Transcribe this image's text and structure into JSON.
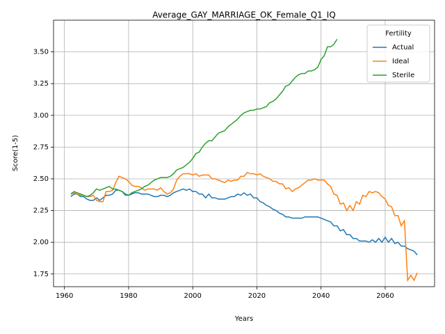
{
  "chart_data": {
    "type": "line",
    "title": "Average_GAY_MARRIAGE_OK_Female_Q1_IQ",
    "x_label": "Years",
    "y_label": "Score(1-5)",
    "legend_title": "Fertility",
    "legend_position": "upper right",
    "grid": true,
    "xlim": [
      1956.6,
      2075.4
    ],
    "xticks": [
      1960,
      1980,
      2000,
      2020,
      2040,
      2060
    ],
    "ylim": [
      1.65,
      3.75
    ],
    "yticks": [
      {
        "value": 1.75,
        "label": "1.75"
      },
      {
        "value": 2,
        "label": "2.00"
      },
      {
        "value": 2.25,
        "label": "2.25"
      },
      {
        "value": 2.5,
        "label": "2.50"
      },
      {
        "value": 2.75,
        "label": "2.75"
      },
      {
        "value": 3,
        "label": "3.00"
      },
      {
        "value": 3.25,
        "label": "3.25"
      },
      {
        "value": 3.5,
        "label": "3.50"
      }
    ],
    "x": [
      1962,
      1963,
      1964,
      1965,
      1966,
      1967,
      1968,
      1969,
      1970,
      1971,
      1972,
      1973,
      1974,
      1975,
      1976,
      1977,
      1978,
      1979,
      1980,
      1981,
      1982,
      1983,
      1984,
      1985,
      1986,
      1987,
      1988,
      1989,
      1990,
      1991,
      1992,
      1993,
      1994,
      1995,
      1996,
      1997,
      1998,
      1999,
      2000,
      2001,
      2002,
      2003,
      2004,
      2005,
      2006,
      2007,
      2008,
      2009,
      2010,
      2011,
      2012,
      2013,
      2014,
      2015,
      2016,
      2017,
      2018,
      2019,
      2020,
      2021,
      2022,
      2023,
      2024,
      2025,
      2026,
      2027,
      2028,
      2029,
      2030,
      2031,
      2032,
      2033,
      2034,
      2035,
      2036,
      2037,
      2038,
      2039,
      2040,
      2041,
      2042,
      2043,
      2044,
      2045,
      2046,
      2047,
      2048,
      2049,
      2050,
      2051,
      2052,
      2053,
      2054,
      2055,
      2056,
      2057,
      2058,
      2059,
      2060,
      2061,
      2062,
      2063,
      2064,
      2065,
      2066,
      2067,
      2068,
      2069,
      2070
    ],
    "series": [
      {
        "name": "Actual",
        "color": "#1f77b4",
        "values": [
          2.36,
          2.38,
          2.38,
          2.36,
          2.36,
          2.34,
          2.33,
          2.33,
          2.35,
          2.33,
          2.35,
          2.37,
          2.37,
          2.38,
          2.41,
          2.41,
          2.4,
          2.38,
          2.37,
          2.38,
          2.39,
          2.39,
          2.38,
          2.38,
          2.38,
          2.37,
          2.36,
          2.36,
          2.37,
          2.37,
          2.36,
          2.37,
          2.39,
          2.4,
          2.41,
          2.42,
          2.41,
          2.42,
          2.4,
          2.4,
          2.38,
          2.38,
          2.35,
          2.38,
          2.35,
          2.35,
          2.34,
          2.34,
          2.34,
          2.35,
          2.36,
          2.36,
          2.38,
          2.37,
          2.39,
          2.37,
          2.38,
          2.35,
          2.35,
          2.32,
          2.31,
          2.29,
          2.28,
          2.26,
          2.25,
          2.23,
          2.22,
          2.2,
          2.2,
          2.19,
          2.19,
          2.19,
          2.19,
          2.2,
          2.2,
          2.2,
          2.2,
          2.2,
          2.19,
          2.18,
          2.17,
          2.16,
          2.13,
          2.13,
          2.09,
          2.1,
          2.06,
          2.06,
          2.03,
          2.03,
          2.01,
          2.01,
          2.01,
          2.0,
          2.02,
          2.0,
          2.03,
          2.0,
          2.04,
          2.0,
          2.03,
          1.99,
          2.0,
          1.97,
          1.97,
          1.95,
          1.94,
          1.93,
          1.9
        ]
      },
      {
        "name": "Ideal",
        "color": "#ff7f0e",
        "values": [
          2.38,
          2.39,
          2.38,
          2.37,
          2.37,
          2.36,
          2.36,
          2.37,
          2.33,
          2.32,
          2.32,
          2.4,
          2.4,
          2.41,
          2.47,
          2.52,
          2.51,
          2.5,
          2.48,
          2.45,
          2.44,
          2.44,
          2.43,
          2.41,
          2.42,
          2.42,
          2.42,
          2.41,
          2.43,
          2.4,
          2.38,
          2.39,
          2.42,
          2.49,
          2.52,
          2.54,
          2.54,
          2.54,
          2.53,
          2.54,
          2.52,
          2.53,
          2.53,
          2.53,
          2.5,
          2.5,
          2.49,
          2.48,
          2.47,
          2.49,
          2.48,
          2.49,
          2.49,
          2.52,
          2.52,
          2.55,
          2.54,
          2.54,
          2.53,
          2.54,
          2.52,
          2.51,
          2.5,
          2.48,
          2.48,
          2.46,
          2.46,
          2.42,
          2.43,
          2.4,
          2.42,
          2.43,
          2.45,
          2.47,
          2.49,
          2.49,
          2.5,
          2.49,
          2.49,
          2.49,
          2.46,
          2.44,
          2.38,
          2.37,
          2.3,
          2.31,
          2.25,
          2.29,
          2.25,
          2.32,
          2.3,
          2.37,
          2.36,
          2.4,
          2.39,
          2.4,
          2.39,
          2.36,
          2.34,
          2.29,
          2.28,
          2.21,
          2.21,
          2.13,
          2.17,
          1.7,
          1.74,
          1.7,
          1.76
        ]
      },
      {
        "name": "Sterile",
        "color": "#2ca02c",
        "values": [
          2.38,
          2.4,
          2.39,
          2.38,
          2.37,
          2.36,
          2.37,
          2.39,
          2.42,
          2.41,
          2.42,
          2.43,
          2.44,
          2.42,
          2.42,
          2.41,
          2.4,
          2.37,
          2.37,
          2.39,
          2.4,
          2.41,
          2.42,
          2.44,
          2.45,
          2.47,
          2.49,
          2.5,
          2.51,
          2.51,
          2.51,
          2.52,
          2.54,
          2.57,
          2.58,
          2.59,
          2.61,
          2.63,
          2.66,
          2.7,
          2.71,
          2.75,
          2.78,
          2.8,
          2.8,
          2.83,
          2.86,
          2.87,
          2.88,
          2.91,
          2.93,
          2.95,
          2.97,
          3.0,
          3.02,
          3.03,
          3.04,
          3.04,
          3.05,
          3.05,
          3.06,
          3.07,
          3.1,
          3.11,
          3.13,
          3.16,
          3.19,
          3.23,
          3.24,
          3.27,
          3.3,
          3.32,
          3.33,
          3.33,
          3.35,
          3.35,
          3.36,
          3.38,
          3.44,
          3.47,
          3.54,
          3.54,
          3.56,
          3.6,
          null,
          null,
          null,
          null,
          null,
          null,
          null,
          null,
          null,
          null,
          null,
          null,
          null,
          null,
          null,
          null,
          null,
          null,
          null,
          null,
          null,
          null,
          null,
          null,
          null
        ]
      }
    ]
  }
}
